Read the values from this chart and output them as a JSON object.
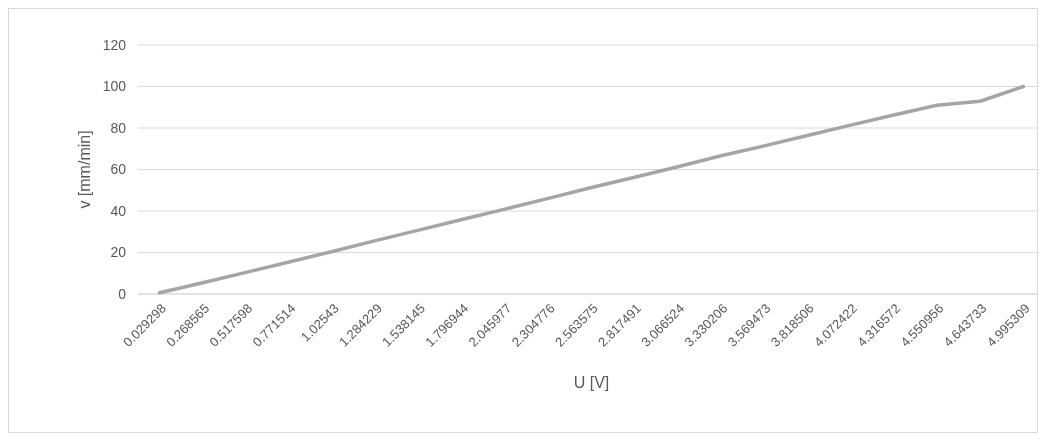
{
  "chart_data": {
    "type": "line",
    "xlabel": "U [V]",
    "ylabel": "v [mm/min]",
    "categories": [
      "0.029298",
      "0.268565",
      "0.517598",
      "0.771514",
      "1.02543",
      "1.284229",
      "1.538145",
      "1.796944",
      "2.045977",
      "2.304776",
      "2.563575",
      "2.817491",
      "3.066524",
      "3.330206",
      "3.569473",
      "3.818506",
      "4.072422",
      "4.316572",
      "4.550956",
      "4.643733",
      "4.995309"
    ],
    "series": [
      {
        "color": "#a5a5a5",
        "values": [
          0.6,
          5.4,
          10.4,
          15.4,
          20.5,
          25.7,
          30.8,
          35.9,
          40.9,
          46.1,
          51.3,
          56.3,
          61.3,
          66.6,
          71.4,
          76.4,
          81.4,
          86.3,
          91,
          92.9,
          100
        ]
      }
    ],
    "ylim": [
      0,
      120
    ],
    "yticks": [
      0,
      20,
      40,
      60,
      80,
      100,
      120
    ],
    "grid": "y",
    "marker": "none",
    "line_style": "solid"
  }
}
